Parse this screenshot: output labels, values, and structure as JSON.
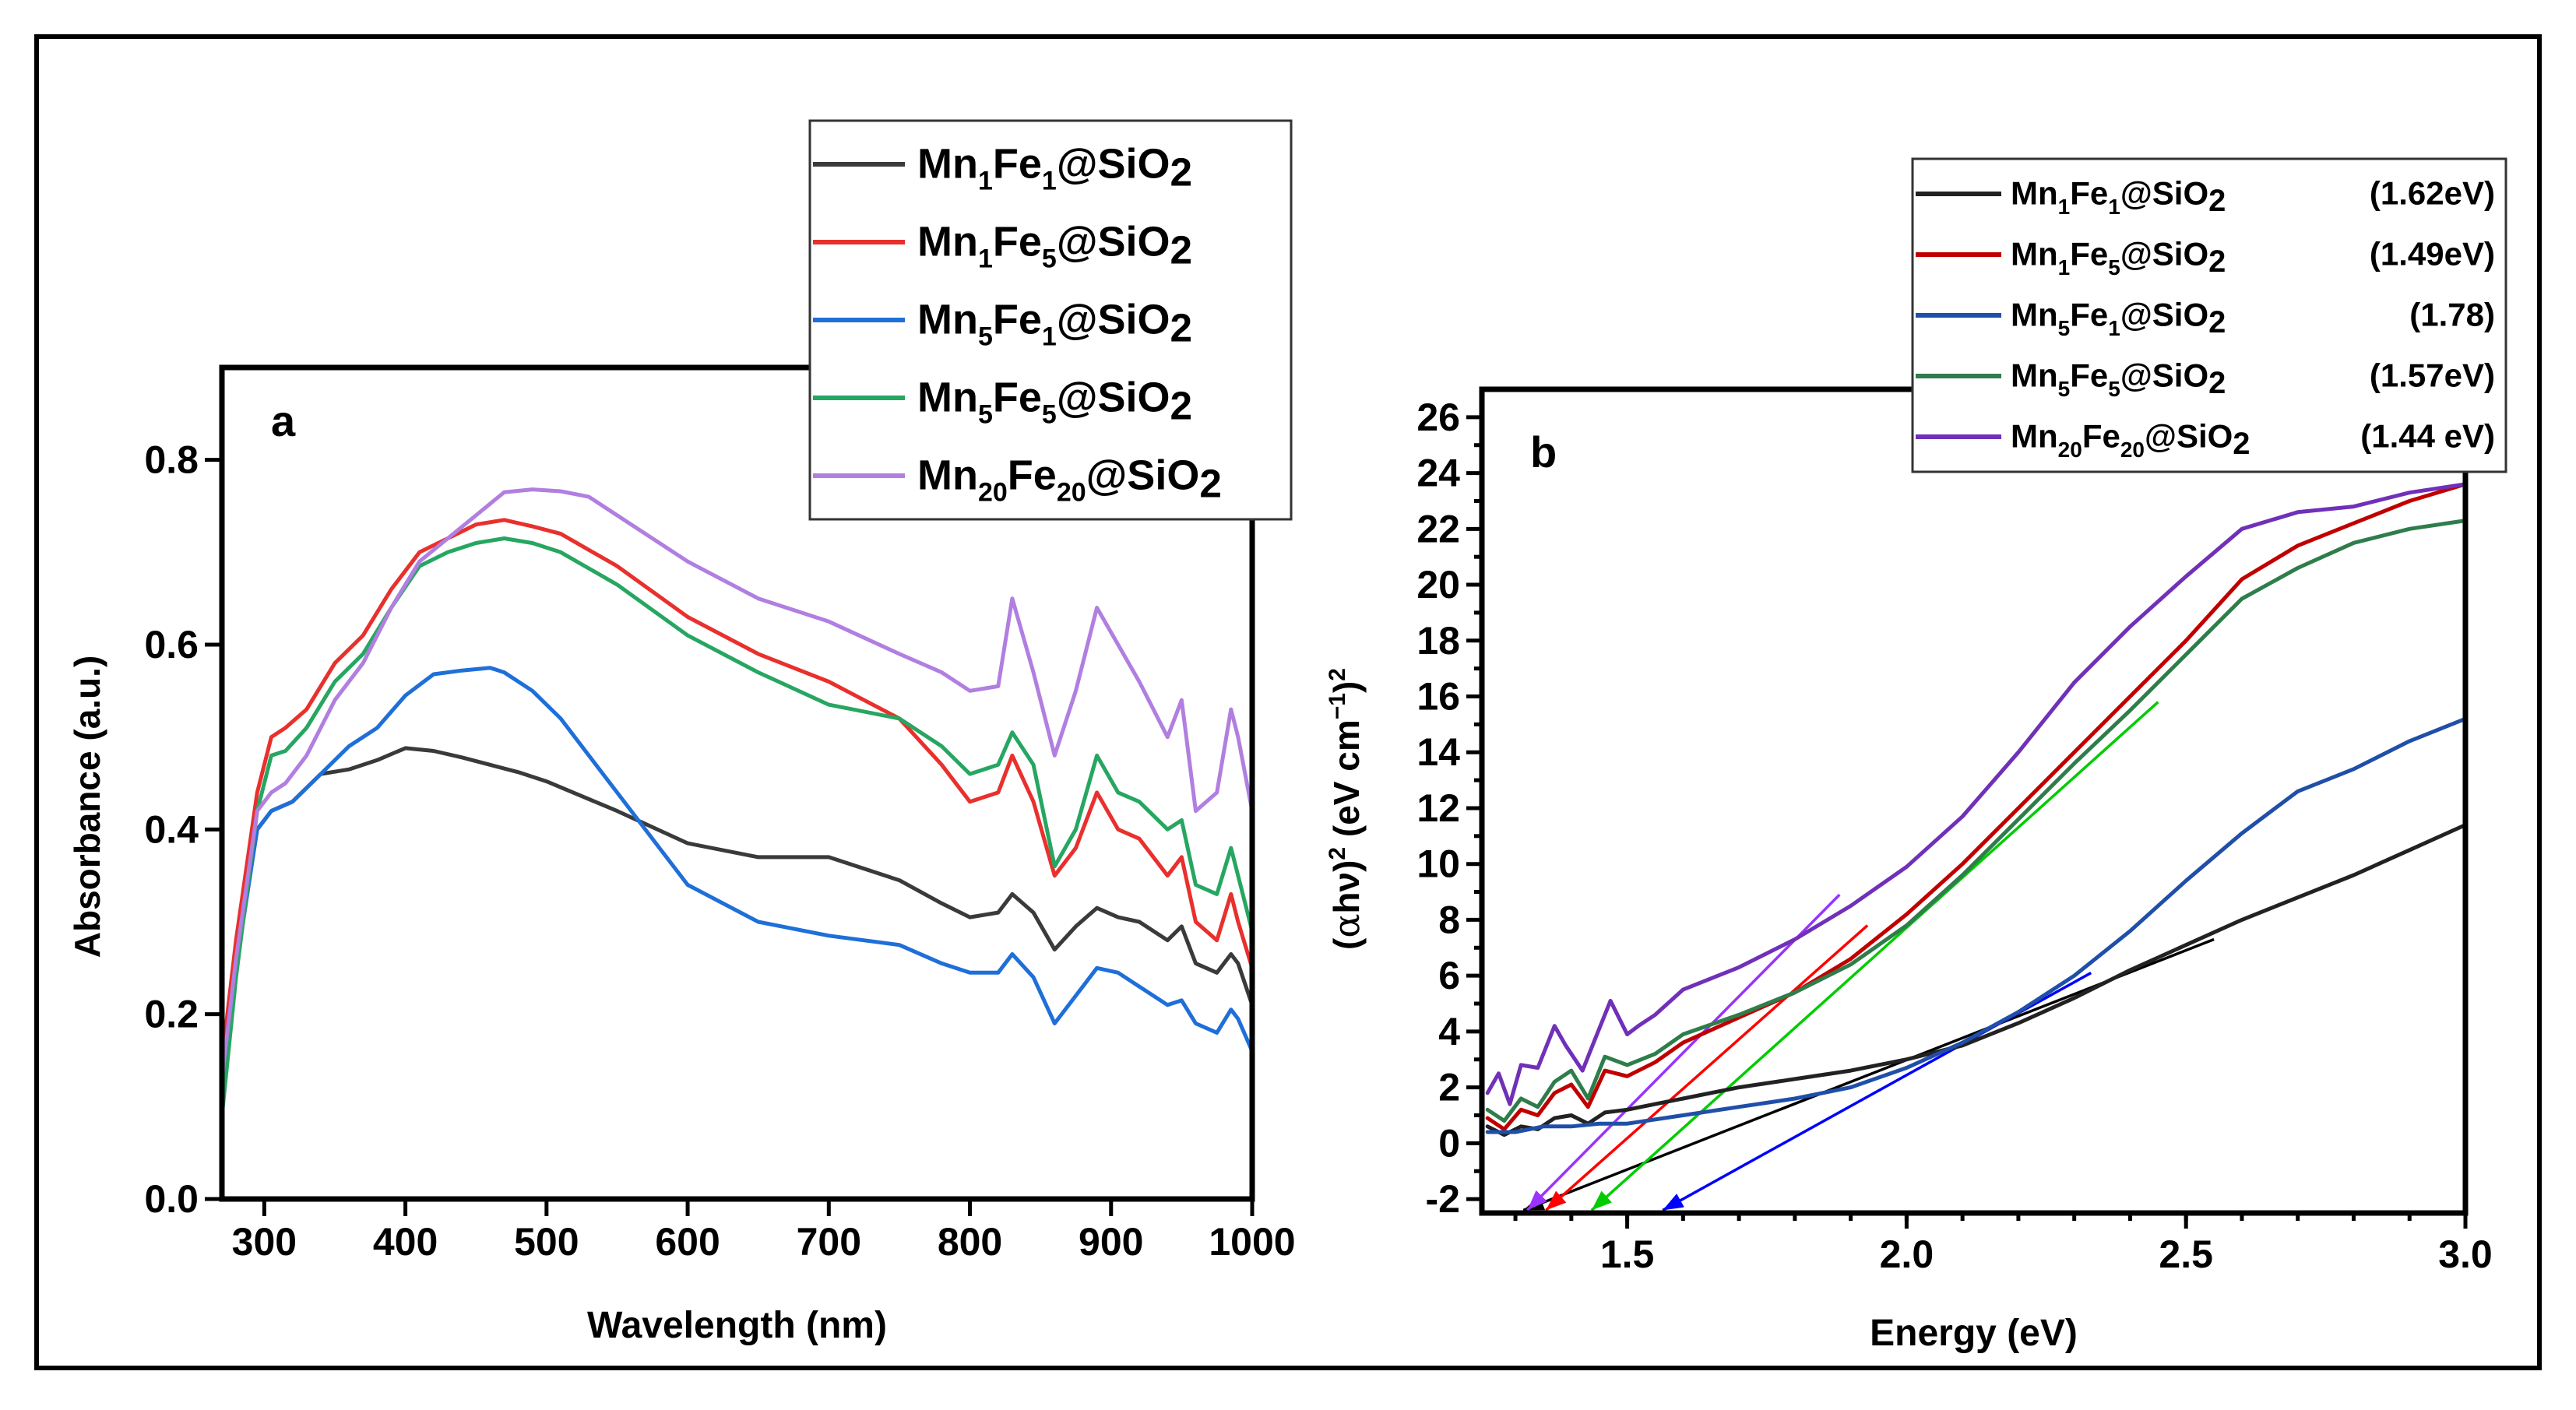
{
  "chart_data": [
    {
      "type": "line",
      "panel_label": "a",
      "xlabel": "Wavelength (nm)",
      "ylabel": "Absorbance (a.u.)",
      "xlim": [
        270,
        1000
      ],
      "ylim": [
        0.0,
        0.9
      ],
      "xticks": [
        300,
        400,
        500,
        600,
        700,
        800,
        900,
        1000
      ],
      "yticks": [
        0.0,
        0.2,
        0.4,
        0.6,
        0.8
      ],
      "xtick_labels": [
        "300",
        "400",
        "500",
        "600",
        "700",
        "800",
        "900",
        "1000"
      ],
      "ytick_labels": [
        "0.0",
        "0.2",
        "0.4",
        "0.6",
        "0.8"
      ],
      "legend_position": "top-right (above plot)",
      "series": [
        {
          "name": "Mn1Fe1@SiO2",
          "legend": {
            "base1": "Mn",
            "sub1": "1",
            "base2": "Fe",
            "sub2": "1",
            "base3": "@SiO",
            "sub3": "2"
          },
          "color": "#3a3a3a",
          "x": [
            270,
            280,
            295,
            305,
            320,
            340,
            360,
            380,
            400,
            420,
            440,
            460,
            480,
            500,
            550,
            600,
            650,
            700,
            750,
            780,
            800,
            820,
            830,
            845,
            860,
            875,
            890,
            905,
            920,
            940,
            950,
            960,
            975,
            985,
            990,
            1000
          ],
          "y": [
            0.14,
            0.26,
            0.4,
            0.42,
            0.43,
            0.46,
            0.465,
            0.475,
            0.488,
            0.485,
            0.478,
            0.47,
            0.462,
            0.452,
            0.42,
            0.385,
            0.37,
            0.37,
            0.345,
            0.32,
            0.305,
            0.31,
            0.33,
            0.31,
            0.27,
            0.295,
            0.315,
            0.305,
            0.3,
            0.28,
            0.295,
            0.255,
            0.245,
            0.265,
            0.255,
            0.21
          ]
        },
        {
          "name": "Mn1Fe5@SiO2",
          "legend": {
            "base1": "Mn",
            "sub1": "1",
            "base2": "Fe",
            "sub2": "5",
            "base3": "@SiO",
            "sub3": "2"
          },
          "color": "#e8302d",
          "x": [
            270,
            280,
            295,
            305,
            315,
            330,
            350,
            370,
            390,
            410,
            430,
            450,
            470,
            490,
            510,
            550,
            600,
            650,
            700,
            750,
            780,
            800,
            820,
            830,
            845,
            860,
            875,
            890,
            905,
            920,
            940,
            950,
            960,
            975,
            985,
            990,
            1000
          ],
          "y": [
            0.15,
            0.28,
            0.44,
            0.5,
            0.51,
            0.53,
            0.58,
            0.61,
            0.66,
            0.7,
            0.715,
            0.73,
            0.735,
            0.728,
            0.72,
            0.685,
            0.63,
            0.59,
            0.56,
            0.52,
            0.47,
            0.43,
            0.44,
            0.48,
            0.43,
            0.35,
            0.38,
            0.44,
            0.4,
            0.39,
            0.35,
            0.37,
            0.3,
            0.28,
            0.33,
            0.3,
            0.25
          ]
        },
        {
          "name": "Mn5Fe1@SiO2",
          "legend": {
            "base1": "Mn",
            "sub1": "5",
            "base2": "Fe",
            "sub2": "1",
            "base3": "@SiO",
            "sub3": "2"
          },
          "color": "#1f6fd8",
          "x": [
            270,
            280,
            295,
            305,
            320,
            340,
            360,
            380,
            400,
            420,
            440,
            460,
            470,
            490,
            510,
            530,
            550,
            580,
            600,
            650,
            700,
            750,
            780,
            800,
            820,
            830,
            845,
            860,
            875,
            890,
            905,
            920,
            940,
            950,
            960,
            975,
            985,
            990,
            1000
          ],
          "y": [
            0.12,
            0.25,
            0.4,
            0.42,
            0.43,
            0.46,
            0.49,
            0.51,
            0.545,
            0.568,
            0.572,
            0.575,
            0.57,
            0.55,
            0.52,
            0.48,
            0.44,
            0.38,
            0.34,
            0.3,
            0.285,
            0.275,
            0.255,
            0.245,
            0.245,
            0.265,
            0.24,
            0.19,
            0.22,
            0.25,
            0.245,
            0.23,
            0.21,
            0.215,
            0.19,
            0.18,
            0.205,
            0.195,
            0.16
          ]
        },
        {
          "name": "Mn5Fe5@SiO2",
          "legend": {
            "base1": "Mn",
            "sub1": "5",
            "base2": "Fe",
            "sub2": "5",
            "base3": "@SiO",
            "sub3": "2"
          },
          "color": "#26a661",
          "x": [
            270,
            280,
            295,
            305,
            315,
            330,
            350,
            370,
            390,
            410,
            430,
            450,
            470,
            490,
            510,
            550,
            600,
            650,
            700,
            750,
            780,
            800,
            820,
            830,
            845,
            860,
            875,
            890,
            905,
            920,
            940,
            950,
            960,
            975,
            985,
            990,
            1000
          ],
          "y": [
            0.09,
            0.24,
            0.42,
            0.48,
            0.485,
            0.51,
            0.56,
            0.59,
            0.64,
            0.685,
            0.7,
            0.71,
            0.715,
            0.71,
            0.7,
            0.665,
            0.61,
            0.57,
            0.535,
            0.52,
            0.49,
            0.46,
            0.47,
            0.505,
            0.47,
            0.36,
            0.4,
            0.48,
            0.44,
            0.43,
            0.4,
            0.41,
            0.34,
            0.33,
            0.38,
            0.35,
            0.29
          ]
        },
        {
          "name": "Mn20Fe20@SiO2",
          "legend": {
            "base1": "Mn",
            "sub1": "20",
            "base2": "Fe",
            "sub2": "20",
            "base3": "@SiO",
            "sub3": "2"
          },
          "color": "#b07fe0",
          "x": [
            270,
            280,
            295,
            305,
            315,
            330,
            350,
            370,
            390,
            410,
            430,
            450,
            470,
            490,
            510,
            530,
            550,
            600,
            650,
            700,
            750,
            780,
            800,
            820,
            830,
            845,
            860,
            875,
            890,
            905,
            920,
            940,
            950,
            960,
            975,
            985,
            990,
            1000
          ],
          "y": [
            0.13,
            0.26,
            0.42,
            0.44,
            0.45,
            0.48,
            0.54,
            0.58,
            0.64,
            0.69,
            0.715,
            0.74,
            0.765,
            0.768,
            0.766,
            0.76,
            0.74,
            0.69,
            0.65,
            0.625,
            0.59,
            0.57,
            0.55,
            0.555,
            0.65,
            0.57,
            0.48,
            0.55,
            0.64,
            0.6,
            0.56,
            0.5,
            0.54,
            0.42,
            0.44,
            0.53,
            0.5,
            0.42
          ]
        }
      ]
    },
    {
      "type": "line",
      "panel_label": "b",
      "xlabel": "Energy (eV)",
      "ylabel": {
        "open": "(",
        "alpha": "α",
        "hnu": "hν",
        "close": ")",
        "sup1": "2",
        "mid": " (eV cm",
        "sup2": "−1",
        "end": ")",
        "sup3": "2"
      },
      "xlim": [
        1.24,
        3.0
      ],
      "ylim": [
        -2.5,
        27
      ],
      "xticks": [
        1.5,
        2.0,
        2.5,
        3.0
      ],
      "yticks": [
        -2,
        0,
        2,
        4,
        6,
        8,
        10,
        12,
        14,
        16,
        18,
        20,
        22,
        24,
        26
      ],
      "xtick_labels": [
        "1.5",
        "2.0",
        "2.5",
        "3.0"
      ],
      "ytick_labels": [
        "-2",
        "0",
        "2",
        "4",
        "6",
        "8",
        "10",
        "12",
        "14",
        "16",
        "18",
        "20",
        "22",
        "24",
        "26"
      ],
      "legend_position": "top-right",
      "series": [
        {
          "name": "Mn1Fe1@SiO2",
          "legend": {
            "base1": "Mn",
            "sub1": "1",
            "base2": "Fe",
            "sub2": "1",
            "base3": "@SiO",
            "sub3": "2",
            "value": "(1.62eV)"
          },
          "color": "#222222",
          "bandgap_ev": 1.62,
          "fit_end": [
            2.55,
            7.3
          ],
          "x": [
            1.25,
            1.28,
            1.31,
            1.34,
            1.37,
            1.4,
            1.43,
            1.46,
            1.5,
            1.55,
            1.6,
            1.7,
            1.8,
            1.9,
            2.0,
            2.1,
            2.2,
            2.3,
            2.4,
            2.5,
            2.6,
            2.7,
            2.8,
            2.9,
            3.0
          ],
          "y": [
            0.6,
            0.3,
            0.6,
            0.5,
            0.9,
            1.0,
            0.7,
            1.1,
            1.2,
            1.4,
            1.6,
            2.0,
            2.3,
            2.6,
            3.0,
            3.5,
            4.3,
            5.2,
            6.2,
            7.1,
            8.0,
            8.8,
            9.6,
            10.5,
            11.4
          ]
        },
        {
          "name": "Mn1Fe5@SiO2",
          "legend": {
            "base1": "Mn",
            "sub1": "1",
            "base2": "Fe",
            "sub2": "5",
            "base3": "@SiO",
            "sub3": "2",
            "value": "(1.49eV)"
          },
          "color": "#c00000",
          "bandgap_ev": 1.49,
          "fit_end": [
            1.93,
            7.8
          ],
          "x": [
            1.25,
            1.28,
            1.31,
            1.34,
            1.37,
            1.4,
            1.43,
            1.46,
            1.5,
            1.55,
            1.6,
            1.7,
            1.8,
            1.9,
            2.0,
            2.1,
            2.2,
            2.3,
            2.4,
            2.5,
            2.6,
            2.7,
            2.8,
            2.9,
            3.0
          ],
          "y": [
            0.9,
            0.5,
            1.2,
            1.0,
            1.8,
            2.1,
            1.3,
            2.6,
            2.4,
            2.9,
            3.6,
            4.5,
            5.4,
            6.6,
            8.2,
            10.0,
            12.0,
            14.0,
            16.0,
            18.0,
            20.2,
            21.4,
            22.2,
            23.0,
            23.6
          ]
        },
        {
          "name": "Mn5Fe1@SiO2",
          "legend": {
            "base1": "Mn",
            "sub1": "5",
            "base2": "Fe",
            "sub2": "1",
            "base3": "@SiO",
            "sub3": "2",
            "value": "(1.78)"
          },
          "color": "#1f4fa8",
          "bandgap_ev": 1.78,
          "fit_end": [
            2.33,
            6.1
          ],
          "x": [
            1.25,
            1.3,
            1.35,
            1.4,
            1.45,
            1.5,
            1.6,
            1.7,
            1.8,
            1.9,
            2.0,
            2.1,
            2.2,
            2.3,
            2.4,
            2.5,
            2.6,
            2.7,
            2.8,
            2.9,
            3.0
          ],
          "y": [
            0.4,
            0.4,
            0.6,
            0.6,
            0.7,
            0.7,
            1.0,
            1.3,
            1.6,
            2.0,
            2.7,
            3.6,
            4.7,
            6.0,
            7.6,
            9.4,
            11.1,
            12.6,
            13.4,
            14.4,
            15.2
          ]
        },
        {
          "name": "Mn5Fe5@SiO2",
          "legend": {
            "base1": "Mn",
            "sub1": "5",
            "base2": "Fe",
            "sub2": "5",
            "base3": "@SiO",
            "sub3": "2",
            "value": "(1.57eV)"
          },
          "color": "#2e7d4b",
          "bandgap_ev": 1.57,
          "fit_end": [
            2.45,
            15.8
          ],
          "x": [
            1.25,
            1.28,
            1.31,
            1.34,
            1.37,
            1.4,
            1.43,
            1.46,
            1.5,
            1.55,
            1.6,
            1.7,
            1.8,
            1.9,
            2.0,
            2.1,
            2.2,
            2.3,
            2.4,
            2.5,
            2.6,
            2.7,
            2.8,
            2.9,
            3.0
          ],
          "y": [
            1.2,
            0.8,
            1.6,
            1.3,
            2.2,
            2.6,
            1.6,
            3.1,
            2.8,
            3.2,
            3.9,
            4.6,
            5.4,
            6.4,
            7.8,
            9.6,
            11.6,
            13.6,
            15.5,
            17.5,
            19.5,
            20.6,
            21.5,
            22.0,
            22.3
          ]
        },
        {
          "name": "Mn20Fe20@SiO2",
          "legend": {
            "base1": "Mn",
            "sub1": "20",
            "base2": "Fe",
            "sub2": "20",
            "base3": "@SiO",
            "sub3": "2",
            "value": "(1.44 eV)"
          },
          "color": "#7030b8",
          "bandgap_ev": 1.44,
          "fit_end": [
            1.88,
            8.9
          ],
          "x": [
            1.25,
            1.27,
            1.29,
            1.31,
            1.34,
            1.37,
            1.39,
            1.42,
            1.44,
            1.47,
            1.5,
            1.52,
            1.55,
            1.6,
            1.7,
            1.8,
            1.9,
            2.0,
            2.1,
            2.2,
            2.3,
            2.4,
            2.5,
            2.6,
            2.7,
            2.8,
            2.9,
            3.0
          ],
          "y": [
            1.8,
            2.5,
            1.4,
            2.8,
            2.7,
            4.2,
            3.5,
            2.6,
            3.6,
            5.1,
            3.9,
            4.2,
            4.6,
            5.5,
            6.3,
            7.3,
            8.5,
            9.9,
            11.7,
            14.0,
            16.5,
            18.5,
            20.3,
            22.0,
            22.6,
            22.8,
            23.3,
            23.6
          ]
        }
      ]
    }
  ]
}
